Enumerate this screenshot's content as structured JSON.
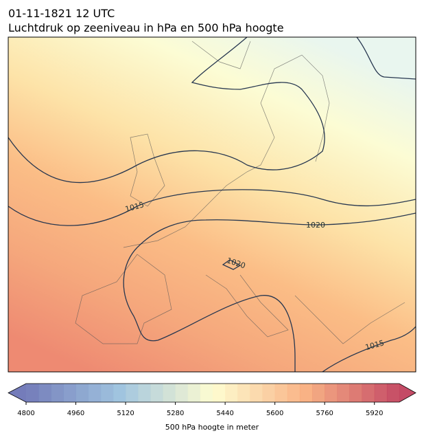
{
  "header": {
    "date": "01-11-1821 12 UTC",
    "title": "Luchtdruk op zeeniveau in hPa en 500 hPa hoogte"
  },
  "contour_labels": [
    "1015",
    "1020",
    "1020",
    "1015"
  ],
  "colorbar": {
    "label": "500 hPa hoogte in meter",
    "clim": [
      4800,
      6000
    ],
    "levels": 30,
    "ticks": [
      4800,
      4960,
      5120,
      5280,
      5440,
      5600,
      5760,
      5920
    ]
  }
}
